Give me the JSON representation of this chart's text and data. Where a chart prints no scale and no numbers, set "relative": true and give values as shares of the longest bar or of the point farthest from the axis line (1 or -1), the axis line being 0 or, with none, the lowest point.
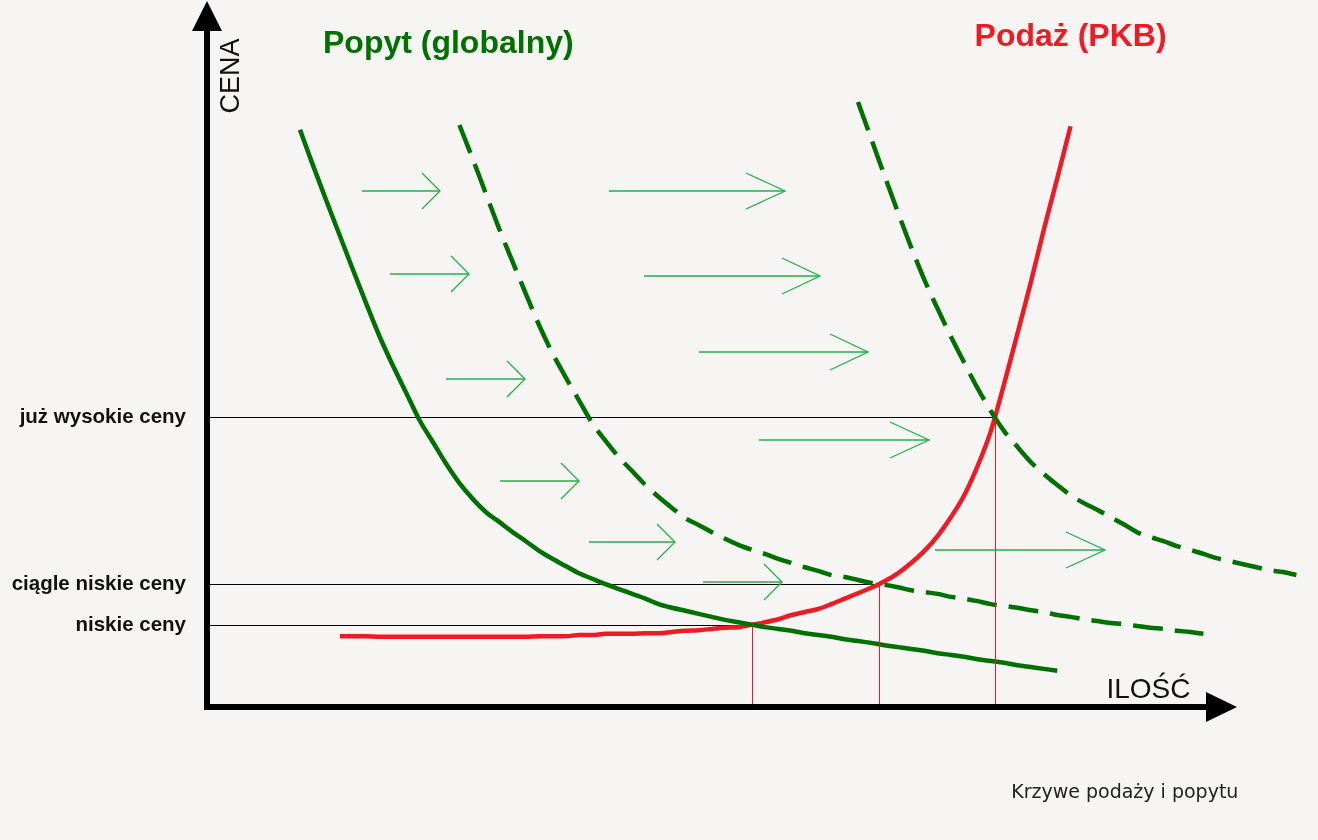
{
  "chart_data": {
    "type": "line",
    "relative": true,
    "xlabel": "ILOŚĆ",
    "ylabel": "CENA",
    "categories": [
      null,
      null,
      null,
      null,
      null,
      null,
      null,
      null,
      null,
      null,
      null,
      null,
      null,
      null,
      null,
      null,
      null,
      null,
      null,
      null,
      null,
      null,
      null,
      null,
      null,
      null,
      null,
      null,
      null,
      null,
      null,
      null,
      null,
      null,
      null,
      null,
      null,
      null,
      null,
      null,
      null,
      null,
      null,
      null,
      null,
      null,
      null,
      null,
      null,
      null,
      null,
      null,
      null,
      null,
      null,
      null,
      null,
      null,
      null,
      null,
      null,
      null,
      null,
      null,
      null,
      null,
      null,
      null,
      null,
      null,
      null,
      null,
      null,
      null,
      null,
      null,
      null,
      null,
      null,
      null,
      null,
      null,
      null
    ],
    "series": [
      {
        "name": "Popyt (globalny)",
        "color": "#007000",
        "values": [
          null,
          null,
          null,
          null,
          null,
          null,
          null,
          0.954,
          0.894,
          0.836,
          0.779,
          0.722,
          0.666,
          0.612,
          0.564,
          0.519,
          0.474,
          0.438,
          0.402,
          0.37,
          0.344,
          0.322,
          0.306,
          0.289,
          0.274,
          0.258,
          0.245,
          0.233,
          0.221,
          0.212,
          0.203,
          0.195,
          0.187,
          0.179,
          0.17,
          0.164,
          0.159,
          0.154,
          0.149,
          0.144,
          0.14,
          0.136,
          0.132,
          0.129,
          0.126,
          0.122,
          0.119,
          0.116,
          0.112,
          0.109,
          0.106,
          0.102,
          0.099,
          0.096,
          0.093,
          0.089,
          0.086,
          0.083,
          0.079,
          0.076,
          0.073,
          0.069,
          0.066,
          0.063,
          0.06,
          null,
          null,
          null,
          null,
          null,
          null,
          null,
          null,
          null,
          null,
          null,
          null,
          null,
          null,
          null,
          null,
          null,
          null
        ]
      },
      {
        "color": "#007000",
        "line_style": "dashed",
        "values": [
          null,
          null,
          null,
          null,
          null,
          null,
          null,
          null,
          null,
          null,
          null,
          null,
          null,
          null,
          null,
          null,
          null,
          null,
          null,
          0.962,
          0.906,
          0.848,
          0.79,
          0.736,
          0.683,
          0.631,
          0.585,
          0.545,
          0.507,
          0.469,
          0.44,
          0.413,
          0.39,
          0.367,
          0.347,
          0.329,
          0.312,
          0.301,
          0.289,
          0.278,
          0.268,
          0.26,
          0.253,
          0.245,
          0.238,
          0.231,
          0.225,
          0.218,
          0.215,
          0.21,
          0.205,
          0.202,
          0.198,
          0.193,
          0.19,
          0.187,
          0.182,
          0.179,
          0.175,
          0.17,
          0.167,
          0.164,
          0.16,
          0.157,
          0.152,
          0.149,
          0.145,
          0.142,
          0.139,
          0.137,
          0.134,
          0.131,
          0.129,
          0.126,
          0.124,
          0.121,
          null,
          null,
          null,
          null,
          null,
          null,
          null
        ]
      },
      {
        "color": "#007000",
        "line_style": "dashed",
        "values": [
          null,
          null,
          null,
          null,
          null,
          null,
          null,
          null,
          null,
          null,
          null,
          null,
          null,
          null,
          null,
          null,
          null,
          null,
          null,
          null,
          null,
          null,
          null,
          null,
          null,
          null,
          null,
          null,
          null,
          null,
          null,
          null,
          null,
          null,
          null,
          null,
          null,
          null,
          null,
          null,
          null,
          null,
          null,
          null,
          null,
          null,
          null,
          null,
          null,
          1,
          0.939,
          0.878,
          0.818,
          0.76,
          0.706,
          0.658,
          0.612,
          0.569,
          0.527,
          0.489,
          0.456,
          0.43,
          0.405,
          0.385,
          0.367,
          0.35,
          0.337,
          0.326,
          0.314,
          0.302,
          0.289,
          0.281,
          0.274,
          0.266,
          0.26,
          0.253,
          0.246,
          0.241,
          0.236,
          0.231,
          0.226,
          0.223,
          0.218
        ]
      },
      {
        "name": "Podaż (PKB)",
        "color": "#ed1c24",
        "values": [
          null,
          null,
          null,
          null,
          null,
          null,
          null,
          null,
          null,
          null,
          0.117,
          0.117,
          0.117,
          0.116,
          0.116,
          0.116,
          0.116,
          0.116,
          0.116,
          0.116,
          0.116,
          0.116,
          0.116,
          0.116,
          0.116,
          0.117,
          0.117,
          0.117,
          0.119,
          0.119,
          0.121,
          0.121,
          0.121,
          0.122,
          0.122,
          0.124,
          0.126,
          0.127,
          0.129,
          0.131,
          0.132,
          0.136,
          0.14,
          0.145,
          0.152,
          0.157,
          0.162,
          0.17,
          0.179,
          0.188,
          0.197,
          0.208,
          0.221,
          0.238,
          0.258,
          0.283,
          0.314,
          0.35,
          0.398,
          0.456,
          0.534,
          0.617,
          0.701,
          0.79,
          0.874,
          0.96,
          null,
          null,
          null,
          null,
          null,
          null,
          null,
          null,
          null,
          null,
          null,
          null,
          null,
          null,
          null,
          null,
          null
        ]
      }
    ],
    "ref_lines": [
      {
        "axis": "y",
        "value": 0.479,
        "label": "już wysokie ceny",
        "color": "#000000"
      },
      {
        "axis": "y",
        "value": 0.203,
        "label": "ciągle niskie ceny",
        "color": "#000000"
      },
      {
        "axis": "y",
        "value": 0.136,
        "label": "niskie ceny",
        "color": "#000000"
      }
    ],
    "annotations": [
      "Krzywe podaży i popytu"
    ]
  }
}
